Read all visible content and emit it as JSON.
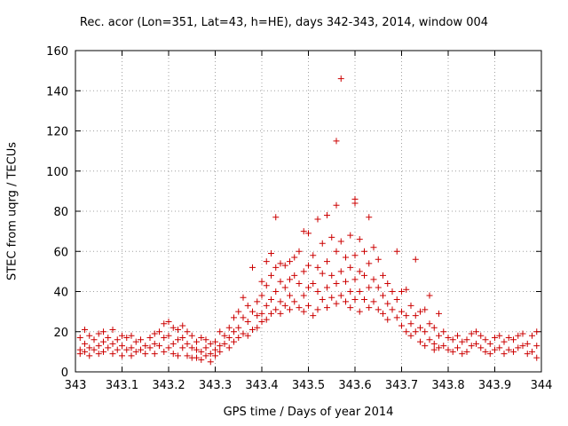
{
  "chart_data": {
    "type": "scatter",
    "title": "Rec. acor (Lon=351, Lat=43, h=HE), days 342-343, 2014, window 004",
    "xlabel": "GPS time / Days of year 2014",
    "ylabel": "STEC from uqrg / TECUs",
    "xlim": [
      343,
      344
    ],
    "ylim": [
      0,
      160
    ],
    "x_ticks": [
      "343",
      "343.1",
      "343.2",
      "343.3",
      "343.4",
      "343.5",
      "343.6",
      "343.7",
      "343.8",
      "343.9",
      "344"
    ],
    "y_ticks": [
      "0",
      "20",
      "40",
      "60",
      "80",
      "100",
      "120",
      "140",
      "160"
    ],
    "grid": true,
    "marker": "+",
    "color": "#cc0000",
    "series": [
      {
        "name": "STEC",
        "points": [
          [
            343.01,
            17
          ],
          [
            343.01,
            11
          ],
          [
            343.01,
            9
          ],
          [
            343.02,
            21
          ],
          [
            343.02,
            14
          ],
          [
            343.02,
            10
          ],
          [
            343.03,
            18
          ],
          [
            343.03,
            12
          ],
          [
            343.03,
            8
          ],
          [
            343.04,
            16
          ],
          [
            343.04,
            11
          ],
          [
            343.05,
            19
          ],
          [
            343.05,
            13
          ],
          [
            343.05,
            9
          ],
          [
            343.06,
            20
          ],
          [
            343.06,
            15
          ],
          [
            343.06,
            10
          ],
          [
            343.07,
            17
          ],
          [
            343.07,
            12
          ],
          [
            343.08,
            21
          ],
          [
            343.08,
            14
          ],
          [
            343.08,
            9
          ],
          [
            343.09,
            16
          ],
          [
            343.09,
            11
          ],
          [
            343.1,
            18
          ],
          [
            343.1,
            13
          ],
          [
            343.1,
            8
          ],
          [
            343.11,
            17
          ],
          [
            343.11,
            11
          ],
          [
            343.12,
            18
          ],
          [
            343.12,
            12
          ],
          [
            343.12,
            8
          ],
          [
            343.13,
            15
          ],
          [
            343.13,
            10
          ],
          [
            343.14,
            16
          ],
          [
            343.14,
            11
          ],
          [
            343.15,
            13
          ],
          [
            343.15,
            9
          ],
          [
            343.16,
            17
          ],
          [
            343.16,
            12
          ],
          [
            343.17,
            19
          ],
          [
            343.17,
            14
          ],
          [
            343.17,
            9
          ],
          [
            343.18,
            20
          ],
          [
            343.18,
            13
          ],
          [
            343.19,
            24
          ],
          [
            343.19,
            17
          ],
          [
            343.19,
            10
          ],
          [
            343.2,
            25
          ],
          [
            343.2,
            18
          ],
          [
            343.2,
            12
          ],
          [
            343.21,
            22
          ],
          [
            343.21,
            14
          ],
          [
            343.21,
            9
          ],
          [
            343.22,
            21
          ],
          [
            343.22,
            16
          ],
          [
            343.22,
            8
          ],
          [
            343.23,
            23
          ],
          [
            343.23,
            17
          ],
          [
            343.23,
            12
          ],
          [
            343.24,
            20
          ],
          [
            343.24,
            14
          ],
          [
            343.24,
            8
          ],
          [
            343.25,
            18
          ],
          [
            343.25,
            12
          ],
          [
            343.25,
            7
          ],
          [
            343.26,
            15
          ],
          [
            343.26,
            11
          ],
          [
            343.26,
            7
          ],
          [
            343.27,
            17
          ],
          [
            343.27,
            10
          ],
          [
            343.27,
            6
          ],
          [
            343.28,
            16
          ],
          [
            343.28,
            12
          ],
          [
            343.28,
            8
          ],
          [
            343.29,
            14
          ],
          [
            343.29,
            9
          ],
          [
            343.29,
            5
          ],
          [
            343.3,
            15
          ],
          [
            343.3,
            11
          ],
          [
            343.3,
            8
          ],
          [
            343.31,
            20
          ],
          [
            343.31,
            13
          ],
          [
            343.31,
            10
          ],
          [
            343.32,
            18
          ],
          [
            343.32,
            14
          ],
          [
            343.33,
            22
          ],
          [
            343.33,
            17
          ],
          [
            343.33,
            12
          ],
          [
            343.34,
            27
          ],
          [
            343.34,
            20
          ],
          [
            343.34,
            15
          ],
          [
            343.35,
            30
          ],
          [
            343.35,
            22
          ],
          [
            343.35,
            17
          ],
          [
            343.36,
            37
          ],
          [
            343.36,
            27
          ],
          [
            343.36,
            19
          ],
          [
            343.37,
            33
          ],
          [
            343.37,
            25
          ],
          [
            343.37,
            18
          ],
          [
            343.38,
            52
          ],
          [
            343.38,
            30
          ],
          [
            343.38,
            21
          ],
          [
            343.39,
            35
          ],
          [
            343.39,
            28
          ],
          [
            343.39,
            22
          ],
          [
            343.4,
            45
          ],
          [
            343.4,
            38
          ],
          [
            343.4,
            29
          ],
          [
            343.4,
            25
          ],
          [
            343.41,
            55
          ],
          [
            343.41,
            43
          ],
          [
            343.41,
            33
          ],
          [
            343.41,
            26
          ],
          [
            343.42,
            59
          ],
          [
            343.42,
            48
          ],
          [
            343.42,
            36
          ],
          [
            343.42,
            29
          ],
          [
            343.43,
            77
          ],
          [
            343.43,
            52
          ],
          [
            343.43,
            40
          ],
          [
            343.43,
            31
          ],
          [
            343.44,
            54
          ],
          [
            343.44,
            45
          ],
          [
            343.44,
            35
          ],
          [
            343.44,
            29
          ],
          [
            343.45,
            53
          ],
          [
            343.45,
            42
          ],
          [
            343.45,
            33
          ],
          [
            343.46,
            55
          ],
          [
            343.46,
            46
          ],
          [
            343.46,
            38
          ],
          [
            343.46,
            31
          ],
          [
            343.47,
            57
          ],
          [
            343.47,
            48
          ],
          [
            343.47,
            35
          ],
          [
            343.48,
            60
          ],
          [
            343.48,
            44
          ],
          [
            343.48,
            32
          ],
          [
            343.49,
            70
          ],
          [
            343.49,
            50
          ],
          [
            343.49,
            38
          ],
          [
            343.49,
            30
          ],
          [
            343.5,
            69
          ],
          [
            343.5,
            53
          ],
          [
            343.5,
            42
          ],
          [
            343.5,
            33
          ],
          [
            343.51,
            58
          ],
          [
            343.51,
            44
          ],
          [
            343.51,
            28
          ],
          [
            343.52,
            76
          ],
          [
            343.52,
            52
          ],
          [
            343.52,
            40
          ],
          [
            343.52,
            31
          ],
          [
            343.53,
            64
          ],
          [
            343.53,
            49
          ],
          [
            343.53,
            36
          ],
          [
            343.54,
            78
          ],
          [
            343.54,
            55
          ],
          [
            343.54,
            42
          ],
          [
            343.54,
            32
          ],
          [
            343.55,
            67
          ],
          [
            343.55,
            48
          ],
          [
            343.55,
            37
          ],
          [
            343.56,
            83
          ],
          [
            343.56,
            115
          ],
          [
            343.56,
            60
          ],
          [
            343.56,
            44
          ],
          [
            343.56,
            34
          ],
          [
            343.57,
            146
          ],
          [
            343.57,
            65
          ],
          [
            343.57,
            50
          ],
          [
            343.57,
            38
          ],
          [
            343.58,
            57
          ],
          [
            343.58,
            45
          ],
          [
            343.58,
            35
          ],
          [
            343.59,
            68
          ],
          [
            343.59,
            52
          ],
          [
            343.59,
            40
          ],
          [
            343.59,
            32
          ],
          [
            343.6,
            86
          ],
          [
            343.6,
            84
          ],
          [
            343.6,
            58
          ],
          [
            343.6,
            46
          ],
          [
            343.6,
            36
          ],
          [
            343.61,
            66
          ],
          [
            343.61,
            50
          ],
          [
            343.61,
            40
          ],
          [
            343.61,
            30
          ],
          [
            343.62,
            60
          ],
          [
            343.62,
            48
          ],
          [
            343.62,
            36
          ],
          [
            343.63,
            77
          ],
          [
            343.63,
            54
          ],
          [
            343.63,
            42
          ],
          [
            343.63,
            32
          ],
          [
            343.64,
            62
          ],
          [
            343.64,
            46
          ],
          [
            343.64,
            35
          ],
          [
            343.65,
            56
          ],
          [
            343.65,
            42
          ],
          [
            343.65,
            31
          ],
          [
            343.66,
            48
          ],
          [
            343.66,
            38
          ],
          [
            343.66,
            29
          ],
          [
            343.67,
            44
          ],
          [
            343.67,
            34
          ],
          [
            343.67,
            26
          ],
          [
            343.68,
            40
          ],
          [
            343.68,
            31
          ],
          [
            343.69,
            60
          ],
          [
            343.69,
            36
          ],
          [
            343.69,
            27
          ],
          [
            343.7,
            40
          ],
          [
            343.7,
            30
          ],
          [
            343.7,
            23
          ],
          [
            343.71,
            41
          ],
          [
            343.71,
            28
          ],
          [
            343.71,
            20
          ],
          [
            343.72,
            33
          ],
          [
            343.72,
            24
          ],
          [
            343.72,
            18
          ],
          [
            343.73,
            56
          ],
          [
            343.73,
            28
          ],
          [
            343.73,
            20
          ],
          [
            343.74,
            30
          ],
          [
            343.74,
            22
          ],
          [
            343.74,
            15
          ],
          [
            343.75,
            31
          ],
          [
            343.75,
            20
          ],
          [
            343.75,
            13
          ],
          [
            343.76,
            38
          ],
          [
            343.76,
            24
          ],
          [
            343.76,
            16
          ],
          [
            343.77,
            22
          ],
          [
            343.77,
            14
          ],
          [
            343.77,
            11
          ],
          [
            343.78,
            29
          ],
          [
            343.78,
            18
          ],
          [
            343.78,
            12
          ],
          [
            343.79,
            20
          ],
          [
            343.79,
            13
          ],
          [
            343.8,
            17
          ],
          [
            343.8,
            11
          ],
          [
            343.81,
            16
          ],
          [
            343.81,
            10
          ],
          [
            343.82,
            18
          ],
          [
            343.82,
            12
          ],
          [
            343.83,
            15
          ],
          [
            343.83,
            9
          ],
          [
            343.84,
            16
          ],
          [
            343.84,
            10
          ],
          [
            343.85,
            19
          ],
          [
            343.85,
            13
          ],
          [
            343.86,
            20
          ],
          [
            343.86,
            14
          ],
          [
            343.87,
            18
          ],
          [
            343.87,
            12
          ],
          [
            343.88,
            16
          ],
          [
            343.88,
            10
          ],
          [
            343.89,
            14
          ],
          [
            343.89,
            9
          ],
          [
            343.9,
            17
          ],
          [
            343.9,
            11
          ],
          [
            343.91,
            18
          ],
          [
            343.91,
            12
          ],
          [
            343.92,
            15
          ],
          [
            343.92,
            9
          ],
          [
            343.93,
            17
          ],
          [
            343.93,
            11
          ],
          [
            343.94,
            16
          ],
          [
            343.94,
            10
          ],
          [
            343.95,
            18
          ],
          [
            343.95,
            12
          ],
          [
            343.96,
            19
          ],
          [
            343.96,
            13
          ],
          [
            343.97,
            14
          ],
          [
            343.97,
            9
          ],
          [
            343.98,
            18
          ],
          [
            343.98,
            10
          ],
          [
            343.99,
            20
          ],
          [
            343.99,
            13
          ],
          [
            343.99,
            7
          ]
        ]
      }
    ]
  }
}
